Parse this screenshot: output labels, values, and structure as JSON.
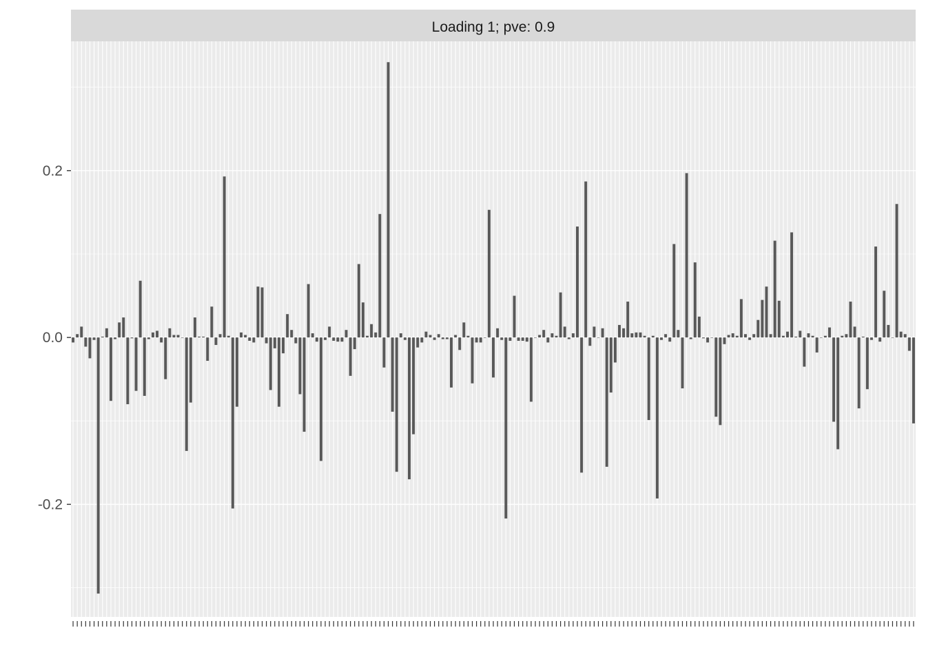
{
  "chart_data": {
    "type": "bar",
    "title": "Loading 1; pve: 0.9",
    "xlabel": "",
    "ylabel": "",
    "ylim": [
      -0.335,
      0.355
    ],
    "y_ticks": [
      0.2,
      0.0,
      -0.2
    ],
    "y_tick_labels": [
      "0.2",
      "0.0",
      "-0.2"
    ],
    "x_tick_labels_visible": false,
    "grid": true,
    "legend": "none",
    "bar_color": "#595959",
    "panel_background": "#ebebeb",
    "strip_background": "#d9d9d9",
    "values": [
      -0.006,
      0.004,
      0.013,
      -0.011,
      -0.025,
      -0.003,
      -0.307,
      0.001,
      0.011,
      -0.076,
      -0.002,
      0.018,
      0.024,
      -0.08,
      -0.001,
      -0.064,
      0.068,
      -0.07,
      -0.002,
      0.006,
      0.008,
      -0.006,
      -0.05,
      0.011,
      0.003,
      0.003,
      0.0,
      -0.136,
      -0.078,
      0.024,
      0.001,
      0.001,
      -0.028,
      0.037,
      -0.009,
      0.004,
      0.193,
      0.002,
      -0.205,
      -0.083,
      0.006,
      0.003,
      -0.004,
      -0.006,
      0.061,
      0.06,
      -0.007,
      -0.063,
      -0.013,
      -0.083,
      -0.019,
      0.028,
      0.009,
      -0.007,
      -0.068,
      -0.113,
      0.064,
      0.005,
      -0.005,
      -0.148,
      -0.003,
      0.013,
      -0.004,
      -0.005,
      -0.005,
      0.009,
      -0.046,
      -0.014,
      0.088,
      0.042,
      0.002,
      0.016,
      0.006,
      0.148,
      -0.036,
      0.33,
      -0.089,
      -0.161,
      0.005,
      -0.003,
      -0.17,
      -0.116,
      -0.012,
      -0.006,
      0.007,
      0.003,
      -0.003,
      0.004,
      -0.002,
      -0.002,
      -0.06,
      0.003,
      -0.015,
      0.018,
      0.002,
      -0.055,
      -0.006,
      -0.006,
      0.0,
      0.153,
      -0.048,
      0.011,
      -0.003,
      -0.217,
      -0.004,
      0.05,
      -0.004,
      -0.004,
      -0.005,
      -0.077,
      0.0,
      0.003,
      0.009,
      -0.006,
      0.005,
      0.002,
      0.054,
      0.013,
      -0.002,
      0.005,
      0.133,
      -0.162,
      0.187,
      -0.01,
      0.013,
      0.0,
      0.011,
      -0.155,
      -0.066,
      -0.03,
      0.015,
      0.011,
      0.043,
      0.005,
      0.006,
      0.006,
      0.002,
      -0.099,
      0.002,
      -0.193,
      -0.003,
      0.004,
      -0.005,
      0.112,
      0.009,
      -0.061,
      0.197,
      -0.002,
      0.09,
      0.025,
      -0.001,
      -0.006,
      0.0,
      -0.095,
      -0.105,
      -0.008,
      0.003,
      0.005,
      0.002,
      0.046,
      0.004,
      -0.003,
      0.004,
      0.021,
      0.045,
      0.061,
      0.004,
      0.116,
      0.044,
      0.002,
      0.007,
      0.126,
      0.001,
      0.008,
      -0.035,
      0.005,
      0.002,
      -0.018,
      0.0,
      0.002,
      0.012,
      -0.101,
      -0.134,
      0.002,
      0.004,
      0.043,
      0.013,
      -0.085,
      0.001,
      -0.062,
      -0.003,
      0.109,
      -0.005,
      0.056,
      0.015,
      0.0,
      0.16,
      0.007,
      0.004,
      -0.016,
      -0.103
    ]
  }
}
